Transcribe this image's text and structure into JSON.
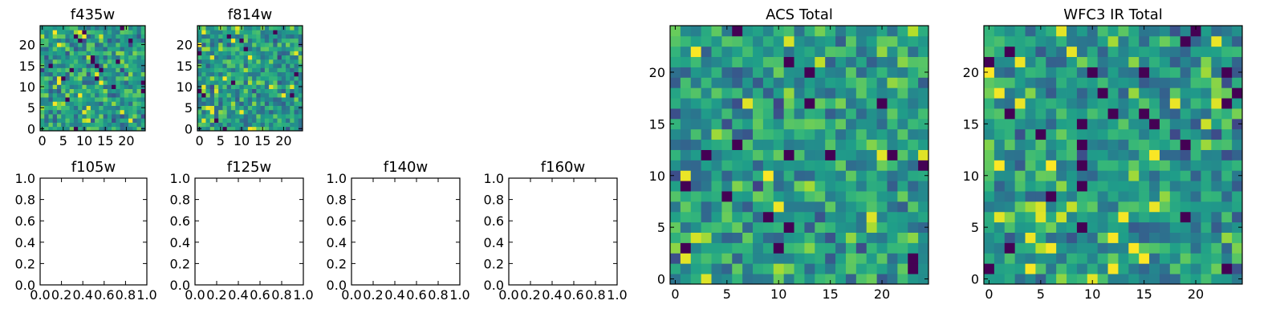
{
  "figure": {
    "background": "#ffffff",
    "axis_color": "#000000"
  },
  "chart_data": [
    {
      "type": "heatmap",
      "title": "f435w",
      "rows": 25,
      "cols": 25,
      "xlim": [
        -0.5,
        24.5
      ],
      "ylim": [
        -0.5,
        24.5
      ],
      "xticks": [
        0,
        5,
        10,
        15,
        20
      ],
      "yticks": [
        0,
        5,
        10,
        15,
        20
      ],
      "colormap": "viridis",
      "seed": 435,
      "values": []
    },
    {
      "type": "heatmap",
      "title": "f814w",
      "rows": 25,
      "cols": 25,
      "xlim": [
        -0.5,
        24.5
      ],
      "ylim": [
        -0.5,
        24.5
      ],
      "xticks": [
        0,
        5,
        10,
        15,
        20
      ],
      "yticks": [
        0,
        5,
        10,
        15,
        20
      ],
      "colormap": "viridis",
      "seed": 814,
      "values": []
    },
    {
      "type": "empty",
      "title": "f105w",
      "xlim": [
        0,
        1
      ],
      "ylim": [
        0,
        1
      ],
      "xticks": [
        "0.0",
        "0.2",
        "0.4",
        "0.6",
        "0.8",
        "1.0"
      ],
      "yticks": [
        "0.0",
        "0.2",
        "0.4",
        "0.6",
        "0.8",
        "1.0"
      ]
    },
    {
      "type": "empty",
      "title": "f125w",
      "xlim": [
        0,
        1
      ],
      "ylim": [
        0,
        1
      ],
      "xticks": [
        "0.0",
        "0.2",
        "0.4",
        "0.6",
        "0.8",
        "1.0"
      ],
      "yticks": [
        "0.0",
        "0.2",
        "0.4",
        "0.6",
        "0.8",
        "1.0"
      ]
    },
    {
      "type": "empty",
      "title": "f140w",
      "xlim": [
        0,
        1
      ],
      "ylim": [
        0,
        1
      ],
      "xticks": [
        "0.0",
        "0.2",
        "0.4",
        "0.6",
        "0.8",
        "1.0"
      ],
      "yticks": [
        "0.0",
        "0.2",
        "0.4",
        "0.6",
        "0.8",
        "1.0"
      ]
    },
    {
      "type": "empty",
      "title": "f160w",
      "xlim": [
        0,
        1
      ],
      "ylim": [
        0,
        1
      ],
      "xticks": [
        "0.0",
        "0.2",
        "0.4",
        "0.6",
        "0.8",
        "1.0"
      ],
      "yticks": [
        "0.0",
        "0.2",
        "0.4",
        "0.6",
        "0.8",
        "1.0"
      ]
    },
    {
      "type": "heatmap",
      "title": "ACS Total",
      "rows": 25,
      "cols": 25,
      "xlim": [
        -0.5,
        24.5
      ],
      "ylim": [
        -0.5,
        24.5
      ],
      "xticks": [
        0,
        5,
        10,
        15,
        20
      ],
      "yticks": [
        0,
        5,
        10,
        15,
        20
      ],
      "colormap": "viridis",
      "seed": 1001,
      "values": []
    },
    {
      "type": "heatmap",
      "title": "WFC3 IR Total",
      "rows": 25,
      "cols": 25,
      "xlim": [
        -0.5,
        24.5
      ],
      "ylim": [
        -0.5,
        24.5
      ],
      "xticks": [
        0,
        5,
        10,
        15,
        20
      ],
      "yticks": [
        0,
        5,
        10,
        15,
        20
      ],
      "colormap": "viridis",
      "seed": 2002,
      "values": []
    }
  ]
}
